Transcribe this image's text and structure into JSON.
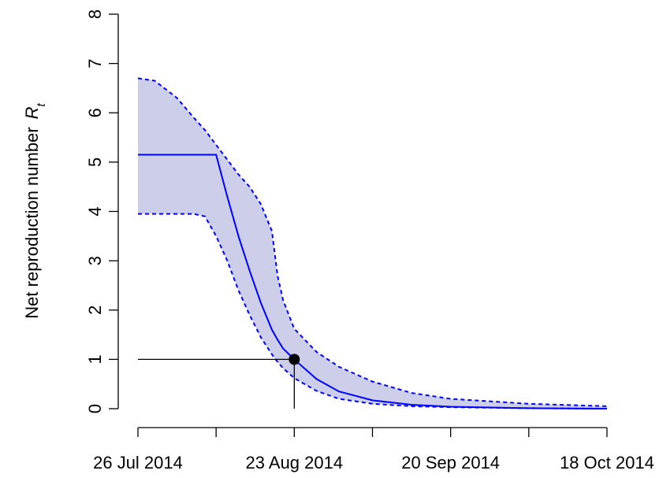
{
  "chart_data": {
    "type": "line",
    "y_label": "Net reproduction number",
    "y_label_symbol": "R",
    "y_label_subscript": "t",
    "x": [
      "2014-07-26",
      "2014-07-29",
      "2014-08-02",
      "2014-08-05",
      "2014-08-07",
      "2014-08-09",
      "2014-08-11",
      "2014-08-13",
      "2014-08-15",
      "2014-08-17",
      "2014-08-19",
      "2014-08-20",
      "2014-08-21",
      "2014-08-23",
      "2014-08-27",
      "2014-08-31",
      "2014-09-06",
      "2014-09-13",
      "2014-09-20",
      "2014-10-04",
      "2014-10-18"
    ],
    "series": [
      {
        "color": "#0000ff",
        "values": [
          5.15,
          5.15,
          5.15,
          5.15,
          5.15,
          5.15,
          4.3,
          3.5,
          2.8,
          2.15,
          1.6,
          1.4,
          1.22,
          1.0,
          0.6,
          0.35,
          0.17,
          0.08,
          0.04,
          0.01,
          0
        ]
      }
    ],
    "band": {
      "fill": "#ccceea",
      "color": "#0000ff",
      "upper": [
        6.7,
        6.65,
        6.3,
        5.9,
        5.65,
        5.35,
        5.05,
        4.75,
        4.5,
        4.15,
        3.6,
        2.7,
        2.2,
        1.62,
        1.15,
        0.85,
        0.55,
        0.32,
        0.2,
        0.1,
        0.05
      ],
      "lower": [
        3.95,
        3.95,
        3.95,
        3.95,
        3.9,
        3.5,
        3.0,
        2.4,
        1.9,
        1.45,
        1.1,
        0.95,
        0.82,
        0.62,
        0.36,
        0.2,
        0.1,
        0.05,
        0.03,
        0.01,
        0
      ]
    },
    "marker": {
      "x": "2014-08-23",
      "y": 1,
      "color": "#000000"
    },
    "xlim": [
      "2014-07-26",
      "2014-10-18"
    ],
    "xticks": [
      {
        "value": "2014-07-26",
        "label": "26 Jul 2014"
      },
      {
        "value": "2014-08-09",
        "label": null
      },
      {
        "value": "2014-08-23",
        "label": "23 Aug 2014"
      },
      {
        "value": "2014-09-06",
        "label": null
      },
      {
        "value": "2014-09-20",
        "label": "20 Sep 2014"
      },
      {
        "value": "2014-10-04",
        "label": null
      },
      {
        "value": "2014-10-18",
        "label": "18 Oct 2014"
      }
    ],
    "ylim": [
      0,
      8
    ],
    "yticks": [
      0,
      1,
      2,
      3,
      4,
      5,
      6,
      7,
      8
    ]
  }
}
